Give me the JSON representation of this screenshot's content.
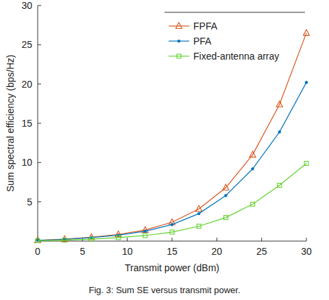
{
  "chart_data": {
    "type": "line",
    "x_label": "Transmit power (dBm)",
    "y_label": "Sum spectral efficiency (bps/Hz)",
    "caption": "Fig. 3: Sum SE versus transmit power.",
    "x": [
      0,
      3,
      6,
      9,
      12,
      15,
      18,
      21,
      24,
      27,
      30
    ],
    "series": [
      {
        "name": "FPFA",
        "color": "#d95319",
        "marker": "triangle",
        "values": [
          0.1,
          0.25,
          0.5,
          0.85,
          1.4,
          2.4,
          4.1,
          6.8,
          11.0,
          17.4,
          26.5
        ]
      },
      {
        "name": "PFA",
        "color": "#0072bd",
        "marker": "dot",
        "values": [
          0.1,
          0.22,
          0.45,
          0.75,
          1.25,
          2.1,
          3.5,
          5.8,
          9.2,
          13.9,
          20.2
        ]
      },
      {
        "name": "Fixed-antenna array",
        "color": "#5fd02a",
        "marker": "square",
        "values": [
          0.05,
          0.12,
          0.25,
          0.45,
          0.7,
          1.15,
          1.9,
          3.0,
          4.7,
          7.1,
          9.9
        ]
      }
    ],
    "xlim": [
      0,
      30
    ],
    "xticks": [
      0,
      5,
      10,
      15,
      20,
      25,
      30
    ],
    "ylim": [
      0,
      30
    ],
    "yticks": [
      5,
      10,
      15,
      20,
      25,
      30
    ],
    "grid": false,
    "legend": "upper right"
  }
}
